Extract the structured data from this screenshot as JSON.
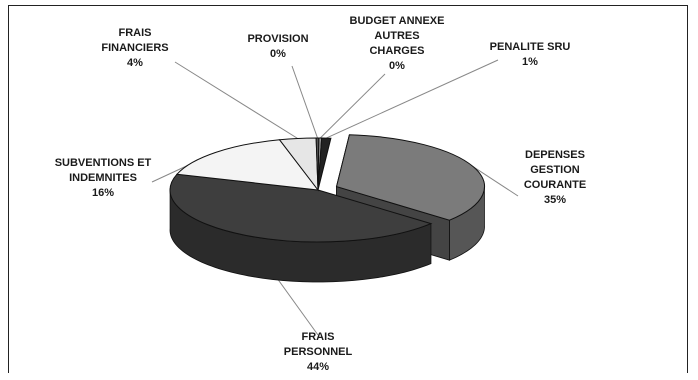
{
  "chart_data": {
    "type": "pie",
    "title": "",
    "slices": [
      {
        "label_lines": [
          "DEPENSES",
          "GESTION",
          "COURANTE"
        ],
        "pct_label": "35%",
        "value": 35,
        "color": "#7b7b7b"
      },
      {
        "label_lines": [
          "FRAIS",
          "PERSONNEL"
        ],
        "pct_label": "44%",
        "value": 44,
        "color": "#3e3e3e"
      },
      {
        "label_lines": [
          "SUBVENTIONS ET",
          "INDEMNITES"
        ],
        "pct_label": "16%",
        "value": 16,
        "color": "#f4f4f4"
      },
      {
        "label_lines": [
          "FRAIS",
          "FINANCIERS"
        ],
        "pct_label": "4%",
        "value": 4,
        "color": "#e6e6e6"
      },
      {
        "label_lines": [
          "PROVISION"
        ],
        "pct_label": "0%",
        "value": 0.3,
        "color": "#555555"
      },
      {
        "label_lines": [
          "BUDGET ANNEXE",
          "AUTRES",
          "CHARGES"
        ],
        "pct_label": "0%",
        "value": 0.3,
        "color": "#9a9a9a"
      },
      {
        "label_lines": [
          "PENALITE SRU"
        ],
        "pct_label": "1%",
        "value": 1,
        "color": "#222222"
      }
    ]
  }
}
